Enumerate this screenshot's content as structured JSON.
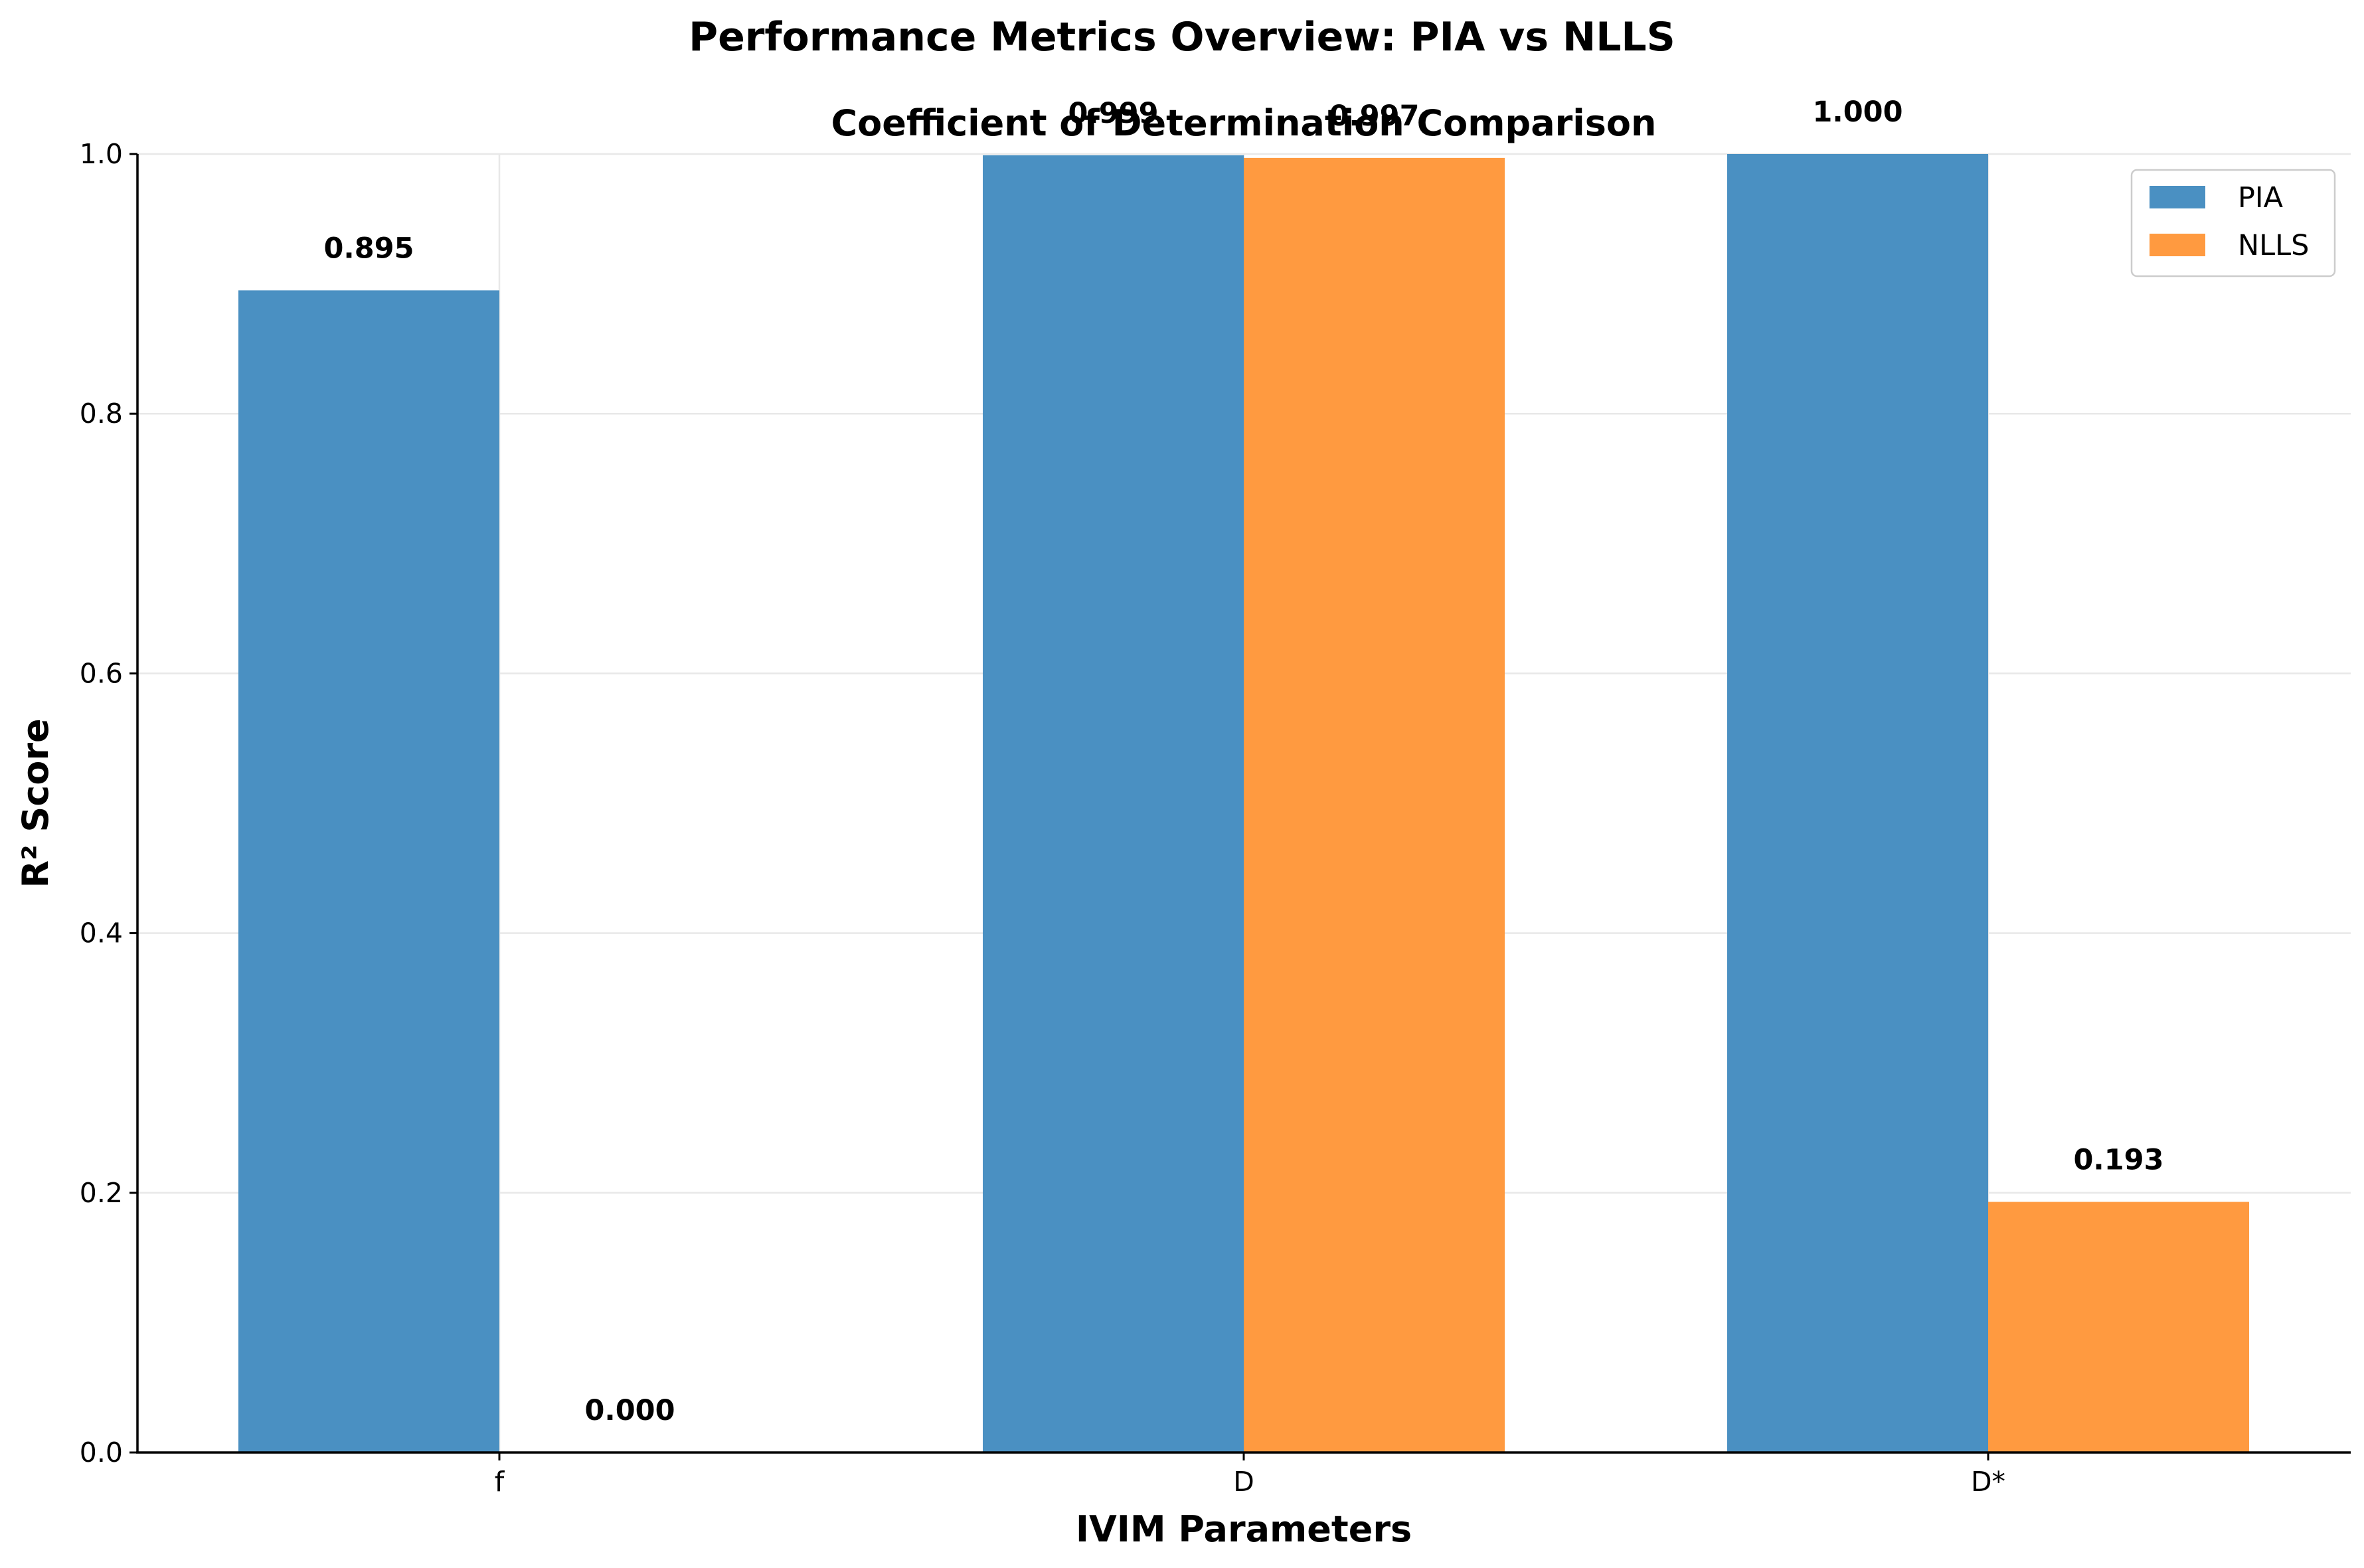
{
  "figure": {
    "suptitle": "Performance Metrics Overview: PIA vs NLLS"
  },
  "chart_data": {
    "type": "bar",
    "title": "Coefficient of Determination Comparison",
    "xlabel": "IVIM Parameters",
    "ylabel": "R² Score",
    "categories": [
      "f",
      "D",
      "D*"
    ],
    "ylim": [
      0,
      1.0
    ],
    "yticks": [
      0.0,
      0.2,
      0.4,
      0.6,
      0.8,
      1.0
    ],
    "ytick_labels": [
      "0.0",
      "0.2",
      "0.4",
      "0.6",
      "0.8",
      "1.0"
    ],
    "grid": true,
    "legend_position": "top-right",
    "series": [
      {
        "name": "PIA",
        "color": "#4a90c2",
        "values": [
          0.895,
          0.999,
          1.0
        ],
        "value_labels": [
          "0.895",
          "0.999",
          "1.000"
        ]
      },
      {
        "name": "NLLS",
        "color": "#ff9a40",
        "values": [
          0.0,
          0.997,
          0.193
        ],
        "value_labels": [
          "0.000",
          "0.997",
          "0.193"
        ]
      }
    ]
  }
}
